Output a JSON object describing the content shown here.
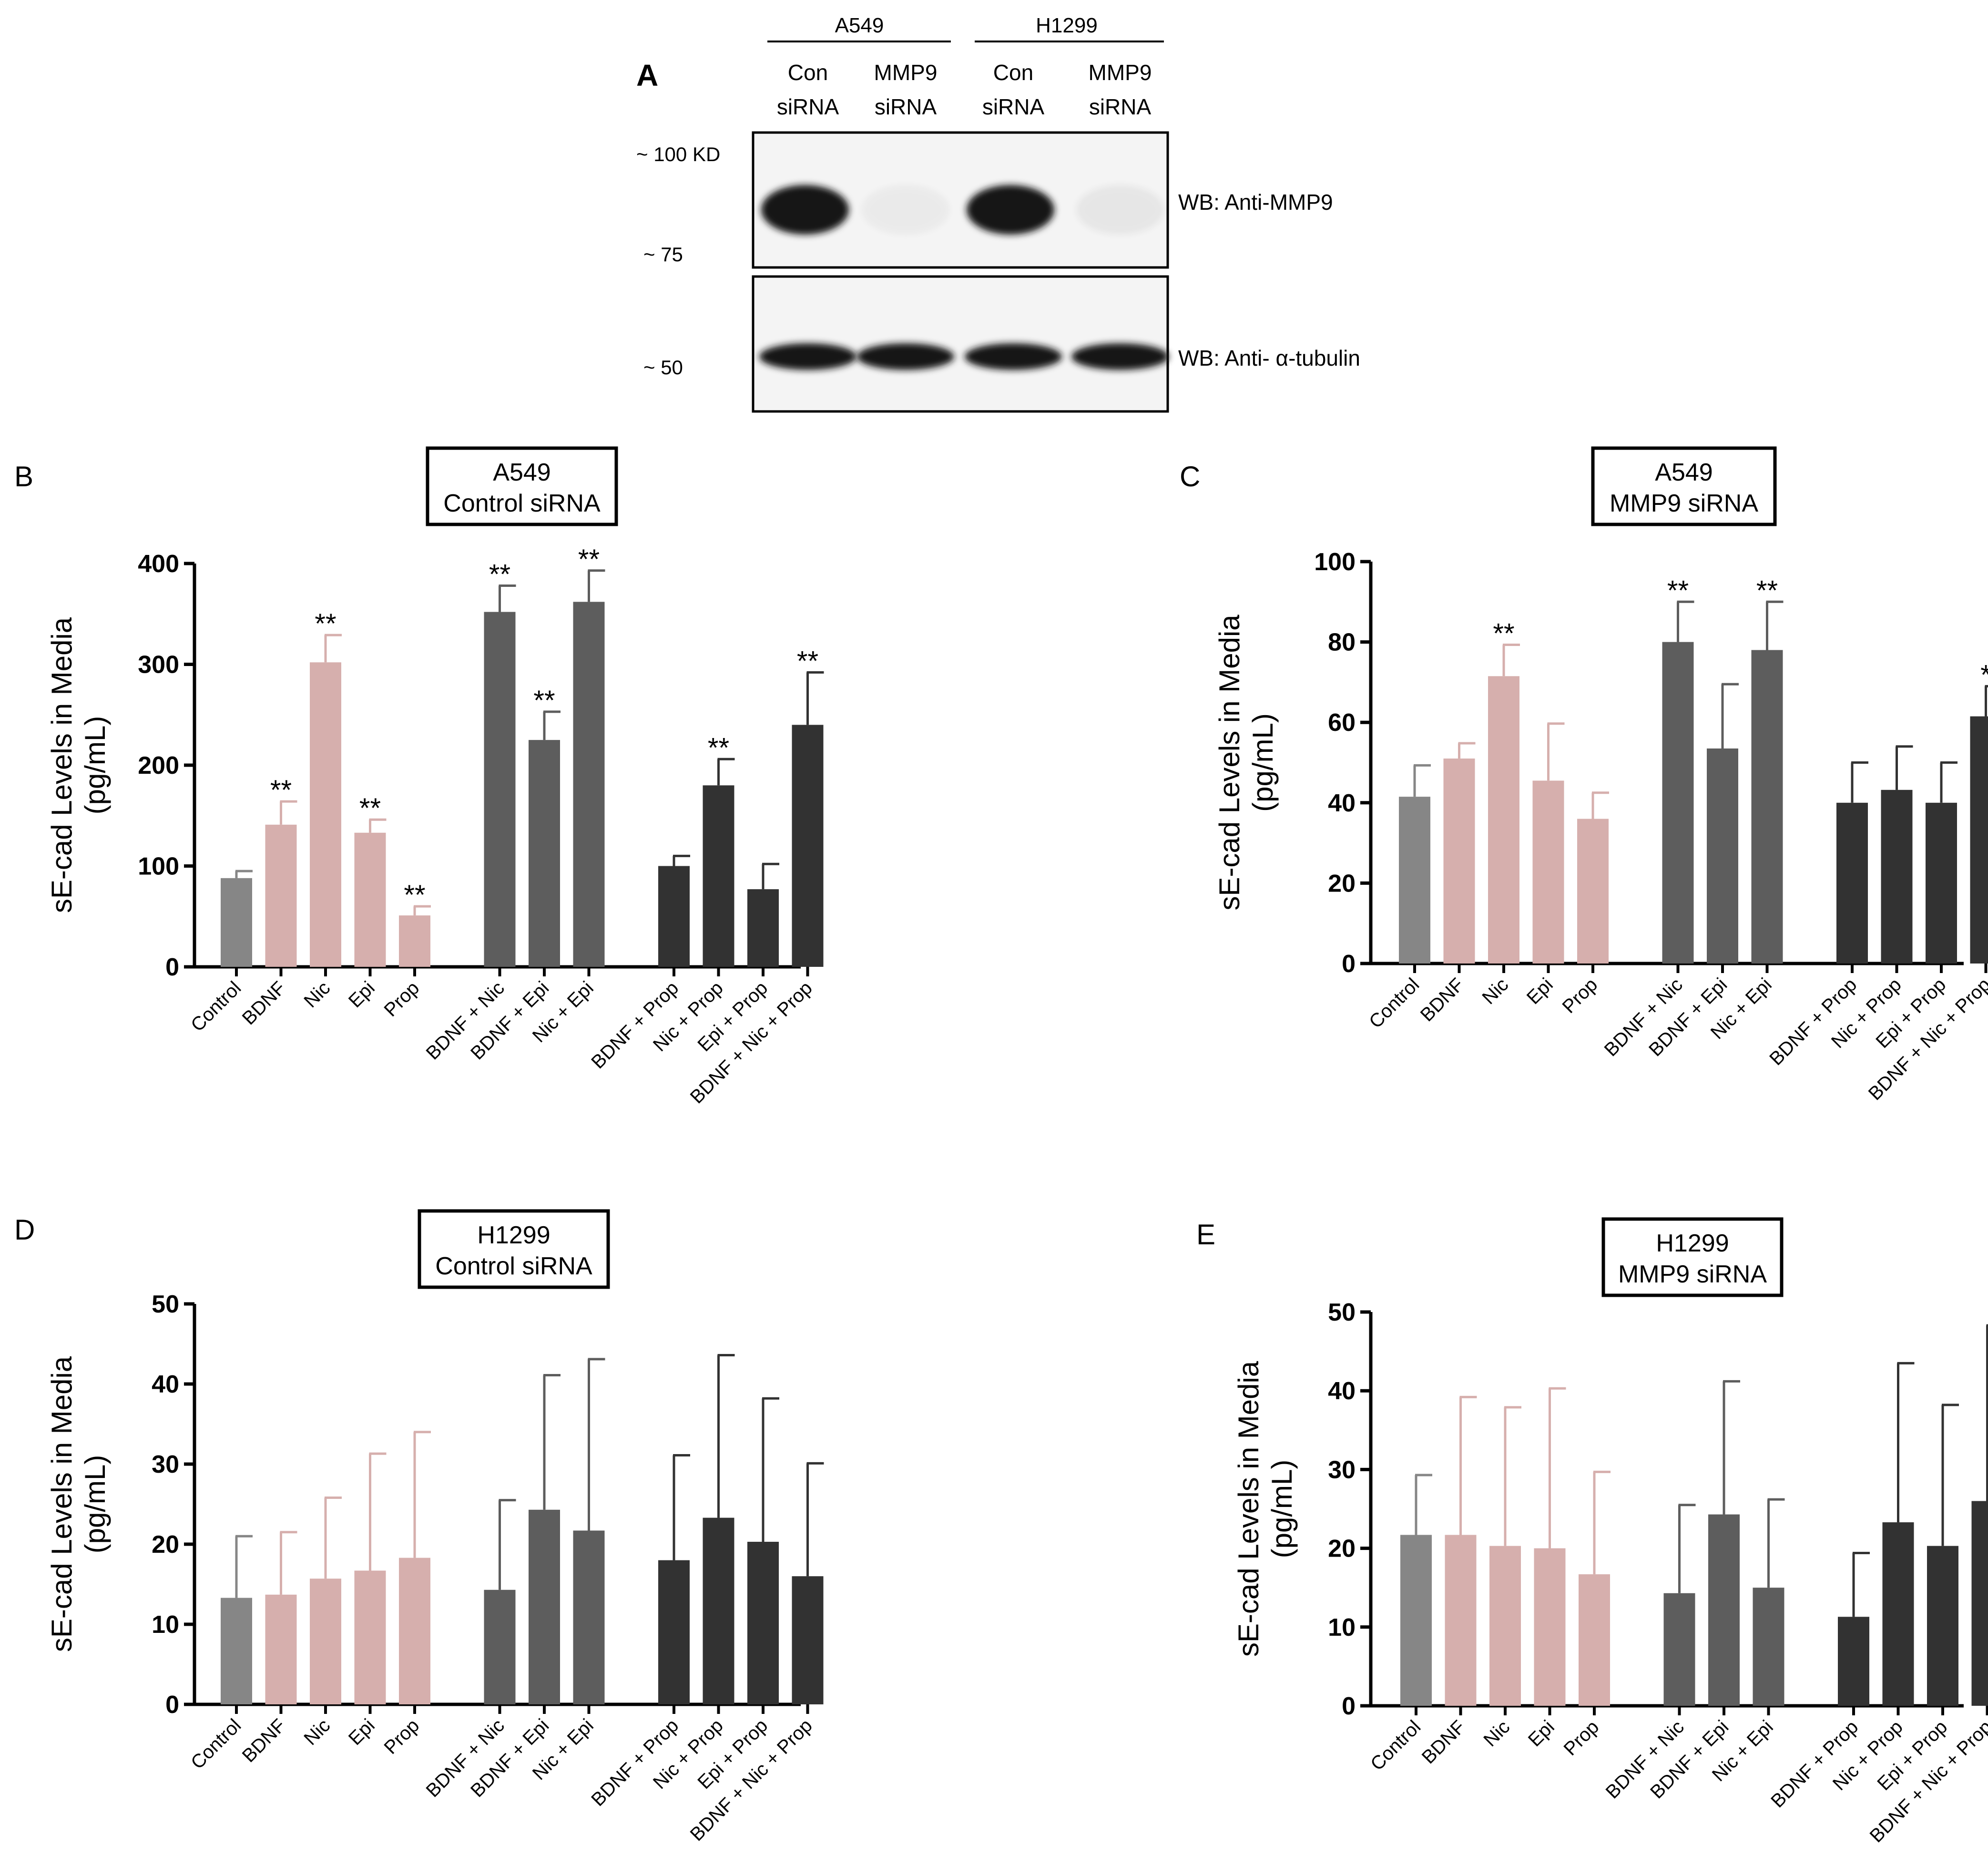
{
  "blot": {
    "panel_label": "A",
    "cell_lines": [
      "A549",
      "H1299"
    ],
    "lanes": [
      {
        "line1": "Con",
        "line2": "siRNA"
      },
      {
        "line1": "MMP9",
        "line2": "siRNA"
      },
      {
        "line1": "Con",
        "line2": "siRNA"
      },
      {
        "line1": "MMP9",
        "line2": "siRNA"
      }
    ],
    "markers": [
      "~ 100 KD",
      "~ 75",
      "~ 50"
    ],
    "blot_labels": [
      "WB: Anti-MMP9",
      "WB: Anti- α-tubulin"
    ],
    "mmp9_band_intensity": [
      1,
      0.04,
      1,
      0.06
    ],
    "tubulin_band_intensity": [
      1,
      1,
      1,
      1
    ]
  },
  "colors": {
    "control": "#868686",
    "single": "#d6afad",
    "combo2": "#5d5d5d",
    "combo3": "#323232"
  },
  "chart_data": [
    {
      "panel": "B",
      "type": "bar",
      "title_line1": "A549",
      "title_line2": "Control siRNA",
      "ylabel_line1": "sE-cad Levels in Media",
      "ylabel_line2": "(pg/mL)",
      "ylim": [
        0,
        400
      ],
      "yticks": [
        0,
        100,
        200,
        300,
        400
      ],
      "categories": [
        "Control",
        "BDNF",
        "Nic",
        "Epi",
        "Prop",
        "BDNF + Nic",
        "BDNF + Epi",
        "Nic + Epi",
        "BDNF + Prop",
        "Nic + Prop",
        "Epi + Prop",
        "BDNF + Nic + Prop"
      ],
      "groups": [
        0,
        1,
        1,
        1,
        1,
        2,
        2,
        2,
        3,
        3,
        3,
        3
      ],
      "values": [
        88,
        141,
        302,
        133,
        51,
        352,
        225,
        362,
        100,
        180,
        77,
        240
      ],
      "errors": [
        7,
        23,
        27,
        13,
        9,
        26,
        28,
        31,
        10,
        26,
        25,
        52
      ],
      "significance": [
        "",
        "**",
        "**",
        "**",
        "**",
        "**",
        "**",
        "**",
        "",
        "**",
        "",
        "**"
      ]
    },
    {
      "panel": "C",
      "type": "bar",
      "title_line1": "A549",
      "title_line2": "MMP9 siRNA",
      "ylabel_line1": "sE-cad Levels in Media",
      "ylabel_line2": "(pg/mL)",
      "ylim": [
        0,
        100
      ],
      "yticks": [
        0,
        20,
        40,
        60,
        80,
        100
      ],
      "categories": [
        "Control",
        "BDNF",
        "Nic",
        "Epi",
        "Prop",
        "BDNF + Nic",
        "BDNF + Epi",
        "Nic + Epi",
        "BDNF + Prop",
        "Nic + Prop",
        "Epi + Prop",
        "BDNF + Nic + Prop"
      ],
      "groups": [
        0,
        1,
        1,
        1,
        1,
        2,
        2,
        2,
        3,
        3,
        3,
        3
      ],
      "values": [
        41.5,
        51,
        71.5,
        45.5,
        36,
        80,
        53.5,
        78,
        40,
        43.2,
        40,
        61.5
      ],
      "errors": [
        7.8,
        3.8,
        7.8,
        14.2,
        6.5,
        10,
        16,
        12,
        10,
        10.8,
        10,
        7.5
      ],
      "significance": [
        "",
        "",
        "**",
        "",
        "",
        "**",
        "",
        "**",
        "",
        "",
        "",
        "*"
      ]
    },
    {
      "panel": "D",
      "type": "bar",
      "title_line1": "H1299",
      "title_line2": "Control siRNA",
      "ylabel_line1": "sE-cad Levels in Media",
      "ylabel_line2": "(pg/mL)",
      "ylim": [
        0,
        50
      ],
      "yticks": [
        0,
        10,
        20,
        30,
        40,
        50
      ],
      "categories": [
        "Control",
        "BDNF",
        "Nic",
        "Epi",
        "Prop",
        "BDNF + Nic",
        "BDNF + Epi",
        "Nic + Epi",
        "BDNF + Prop",
        "Nic + Prop",
        "Epi + Prop",
        "BDNF + Nic + Prop"
      ],
      "groups": [
        0,
        1,
        1,
        1,
        1,
        2,
        2,
        2,
        3,
        3,
        3,
        3
      ],
      "values": [
        13.3,
        13.7,
        15.7,
        16.7,
        18.3,
        14.3,
        24.3,
        21.7,
        18,
        23.3,
        20.3,
        16
      ],
      "errors": [
        7.7,
        7.8,
        10.1,
        14.6,
        15.7,
        11.2,
        16.8,
        21.4,
        13.1,
        20.3,
        17.9,
        14.1
      ],
      "significance": [
        "",
        "",
        "",
        "",
        "",
        "",
        "",
        "",
        "",
        "",
        "",
        ""
      ]
    },
    {
      "panel": "E",
      "type": "bar",
      "title_line1": "H1299",
      "title_line2": "MMP9 siRNA",
      "ylabel_line1": "sE-cad Levels in Media",
      "ylabel_line2": "(pg/mL)",
      "ylim": [
        0,
        50
      ],
      "yticks": [
        0,
        10,
        20,
        30,
        40,
        50
      ],
      "categories": [
        "Control",
        "BDNF",
        "Nic",
        "Epi",
        "Prop",
        "BDNF + Nic",
        "BDNF + Epi",
        "Nic + Epi",
        "BDNF + Prop",
        "Nic + Prop",
        "Epi + Prop",
        "BDNF + Nic + Prop"
      ],
      "groups": [
        0,
        1,
        1,
        1,
        1,
        2,
        2,
        2,
        3,
        3,
        3,
        3
      ],
      "values": [
        21.7,
        21.7,
        20.3,
        20,
        16.7,
        14.3,
        24.3,
        15,
        11.3,
        23.3,
        20.3,
        26
      ],
      "errors": [
        7.6,
        17.5,
        17.6,
        20.3,
        13,
        11.2,
        16.9,
        11.2,
        8.1,
        20.2,
        17.9,
        22.3
      ],
      "significance": [
        "",
        "",
        "",
        "",
        "",
        "",
        "",
        "",
        "",
        "",
        "",
        ""
      ]
    }
  ]
}
